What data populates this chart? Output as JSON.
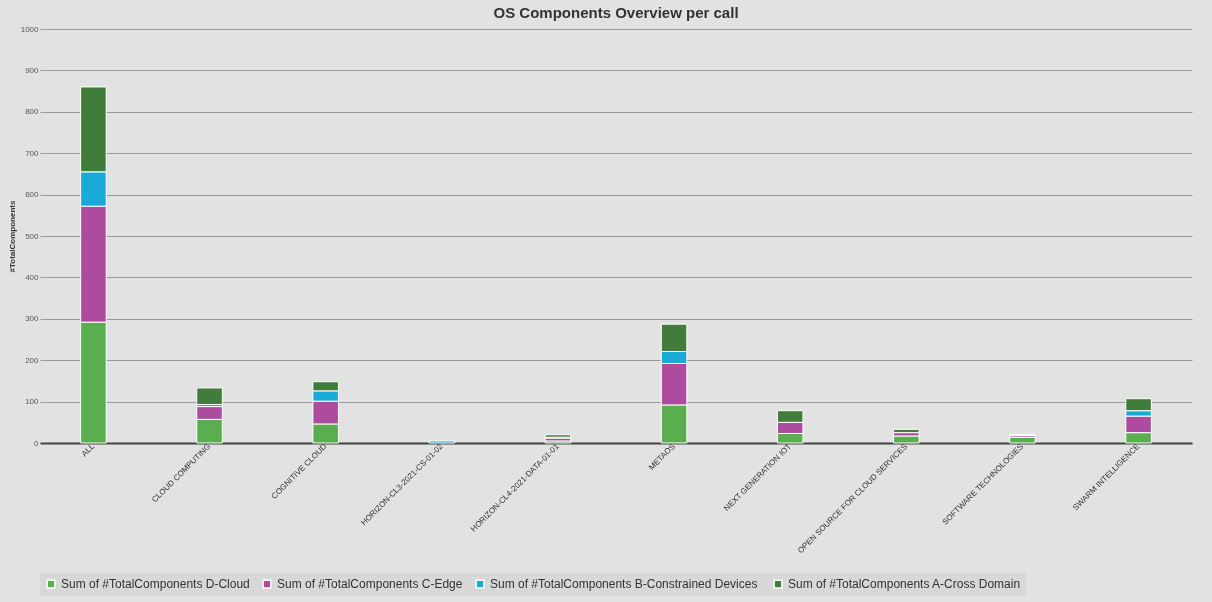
{
  "chart_data": {
    "type": "bar",
    "stacked": true,
    "title": "OS Components Overview per call",
    "ylabel": "#TotalComponents",
    "categories": [
      "ALL",
      "CLOUD COMPUTING",
      "COGNITIVE CLOUD",
      "HORIZON-CL3-2021-CS-01-02",
      "HORIZON-CL4-2021-DATA-01-01",
      "METAOS",
      "NEXT GENERATION IOT",
      "OPEN SOURCE FOR CLOUD SERVICES",
      "SOFTWARE TECHNOLOGIES",
      "SWARM INTELLIGENCE"
    ],
    "series": [
      {
        "name": "Sum of #TotalComponents D-Cloud",
        "color": "#5aae4f",
        "values": [
          292,
          57,
          46,
          0,
          5,
          92,
          23,
          17,
          14,
          25
        ]
      },
      {
        "name": "Sum of #TotalComponents C-Edge",
        "color": "#ad4c9e",
        "values": [
          280,
          31,
          55,
          0,
          7,
          100,
          27,
          8,
          4,
          40
        ]
      },
      {
        "name": "Sum of #TotalComponents  B-Constrained Devices",
        "color": "#1aaad8",
        "values": [
          83,
          5,
          25,
          5,
          2,
          29,
          null,
          null,
          2,
          13
        ]
      },
      {
        "name": "Sum of #TotalComponents A-Cross Domain",
        "color": "#427c3a",
        "values": [
          205,
          40,
          22,
          0,
          6,
          66,
          28,
          8,
          1,
          29
        ]
      }
    ],
    "ylim": [
      0,
      1000
    ],
    "yticks": [
      0,
      100,
      200,
      300,
      400,
      500,
      600,
      700,
      800,
      900,
      1000
    ],
    "grid": "y",
    "legend": "bottom"
  }
}
